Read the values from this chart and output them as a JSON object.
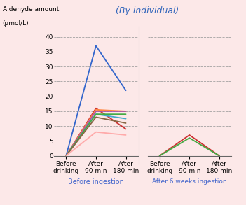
{
  "title": "(By individual)",
  "background_color": "#fce8e8",
  "ylim": [
    0,
    40
  ],
  "yticks": [
    0,
    5,
    10,
    15,
    20,
    25,
    30,
    35,
    40
  ],
  "left_xtick_labels": [
    "Before\ndrinking",
    "After\n90 min",
    "After\n180 min"
  ],
  "right_xtick_labels": [
    "Before\ndrinking",
    "After\n90 min",
    "After\n180 min"
  ],
  "left_label": "Before ingestion",
  "right_label": "After 6 weeks ingestion",
  "label_color": "#4466cc",
  "title_color": "#3366bb",
  "lines_left": [
    {
      "color": "#3366cc",
      "values": [
        0,
        37,
        22
      ]
    },
    {
      "color": "#cc3333",
      "values": [
        0,
        16,
        9
      ]
    },
    {
      "color": "#ff8844",
      "values": [
        0,
        15.5,
        15
      ]
    },
    {
      "color": "#aa55aa",
      "values": [
        0,
        15,
        15
      ]
    },
    {
      "color": "#44aacc",
      "values": [
        0,
        14,
        12.5
      ]
    },
    {
      "color": "#44aa44",
      "values": [
        0,
        14,
        14
      ]
    },
    {
      "color": "#886644",
      "values": [
        0,
        13,
        11
      ]
    },
    {
      "color": "#ffaaaa",
      "values": [
        0,
        8,
        7
      ]
    }
  ],
  "lines_right": [
    {
      "color": "#cc3333",
      "values": [
        0,
        7,
        0
      ]
    },
    {
      "color": "#44aa44",
      "values": [
        0,
        6,
        0
      ]
    }
  ]
}
